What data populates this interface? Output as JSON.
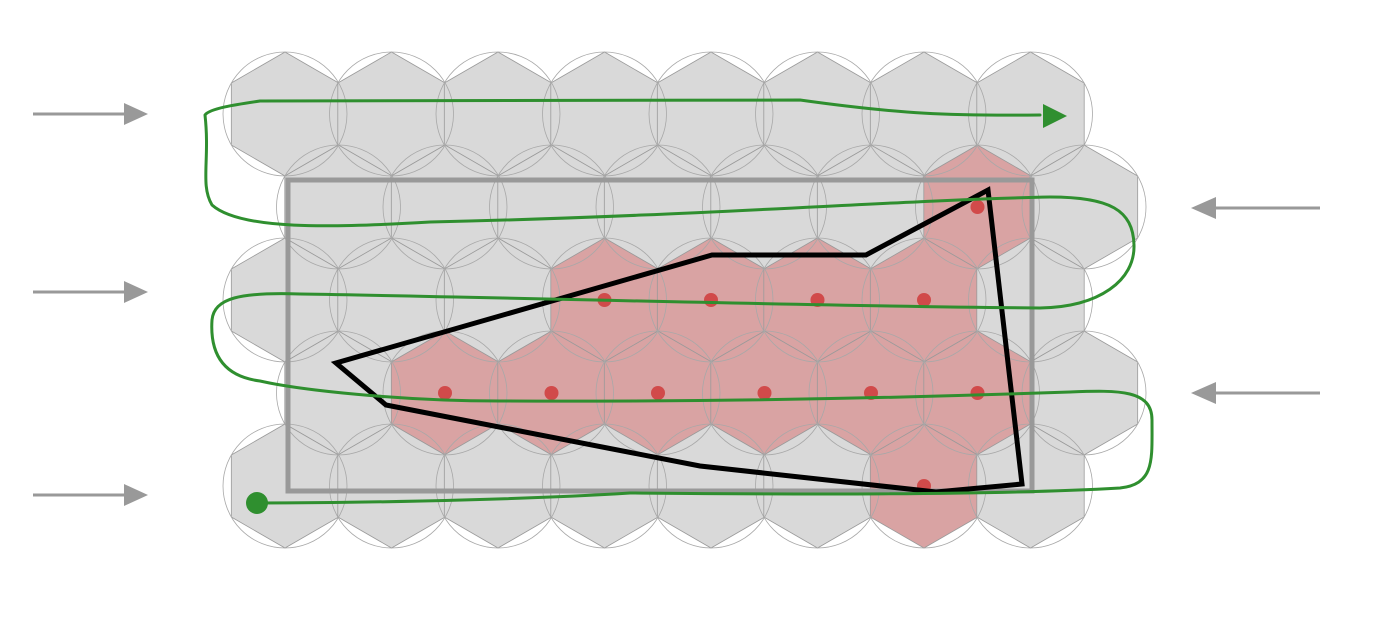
{
  "diagram": {
    "rows": [
      {
        "offset": false,
        "count": 8,
        "red": []
      },
      {
        "offset": true,
        "count": 8,
        "red": [
          6
        ]
      },
      {
        "offset": false,
        "count": 8,
        "red": [
          3,
          4,
          5,
          6
        ]
      },
      {
        "offset": true,
        "count": 8,
        "red": [
          1,
          2,
          3,
          4,
          5,
          6
        ]
      },
      {
        "offset": false,
        "count": 8,
        "red": [
          6
        ]
      }
    ],
    "sweep_directions": [
      "right",
      "left",
      "right",
      "left",
      "right"
    ],
    "colors": {
      "cell_fill": "#d9d9d9",
      "cell_stroke": "#9a9a9a",
      "circle_stroke": "#a8a8a8",
      "red_cell_fill": "#d9a3a3",
      "red_dot": "#d14a4a",
      "boundary_box": "#999999",
      "polygon": "#000000",
      "path": "#2f8f2f",
      "arrow": "#999999"
    },
    "icons": {
      "path_start": "start-dot-icon",
      "path_end": "end-arrowhead-icon"
    }
  }
}
